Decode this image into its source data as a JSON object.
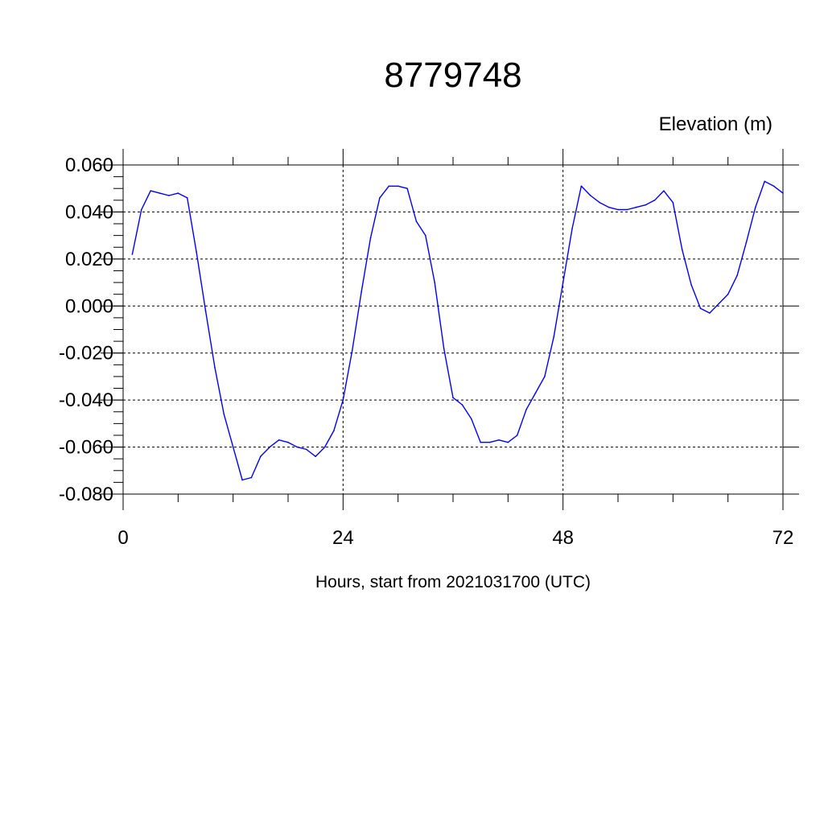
{
  "chart_data": {
    "type": "line",
    "title": "8779748",
    "ylabel": "Elevation (m)",
    "xlabel": "Hours, start from 2021031700 (UTC)",
    "xlim": [
      0,
      72
    ],
    "ylim": [
      -0.08,
      0.06
    ],
    "x_ticks": [
      0,
      24,
      48,
      72
    ],
    "x_tick_labels": [
      "0",
      "24",
      "48",
      "72"
    ],
    "y_ticks": [
      0.06,
      0.04,
      0.02,
      0.0,
      -0.02,
      -0.04,
      -0.06,
      -0.08
    ],
    "y_tick_labels": [
      "0.060",
      "0.040",
      "0.020",
      "0.000",
      "-0.020",
      "-0.040",
      "-0.060",
      "-0.080"
    ],
    "grid": true,
    "series_color": "#0000ff",
    "series": [
      {
        "x": [
          1,
          2,
          3,
          4,
          5,
          6,
          7,
          8,
          9,
          10,
          11,
          12,
          13,
          14,
          15,
          16,
          17,
          18,
          19,
          20,
          21,
          22,
          23,
          24,
          25,
          26,
          27,
          28,
          29,
          30,
          31,
          32,
          33,
          34,
          35,
          36,
          37,
          38,
          39,
          40,
          41,
          42,
          43,
          44,
          45,
          46,
          47,
          48,
          49,
          50,
          51,
          52,
          53,
          54,
          55,
          56,
          57,
          58,
          59,
          60,
          61,
          62,
          63,
          64,
          65,
          66,
          67,
          68,
          69,
          70,
          71,
          72
        ],
        "y": [
          0.022,
          0.041,
          0.049,
          0.048,
          0.047,
          0.048,
          0.046,
          0.023,
          -0.002,
          -0.026,
          -0.046,
          -0.06,
          -0.074,
          -0.073,
          -0.064,
          -0.06,
          -0.057,
          -0.058,
          -0.06,
          -0.061,
          -0.064,
          -0.06,
          -0.053,
          -0.04,
          -0.019,
          0.006,
          0.029,
          0.046,
          0.051,
          0.051,
          0.05,
          0.036,
          0.03,
          0.01,
          -0.018,
          -0.039,
          -0.042,
          -0.048,
          -0.058,
          -0.058,
          -0.057,
          -0.058,
          -0.055,
          -0.044,
          -0.037,
          -0.03,
          -0.013,
          0.01,
          0.033,
          0.051,
          0.047,
          0.044,
          0.042,
          0.041,
          0.041,
          0.042,
          0.043,
          0.045,
          0.049,
          0.044,
          0.024,
          0.009,
          -0.001,
          -0.003,
          0.001,
          0.005,
          0.013,
          0.027,
          0.042,
          0.053,
          0.051,
          0.048
        ]
      }
    ]
  }
}
